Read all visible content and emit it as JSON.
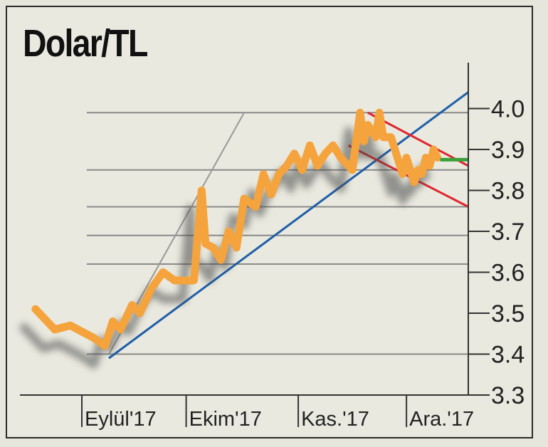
{
  "chart_data": {
    "type": "line",
    "title": "Dolar/TL",
    "xlabel": "",
    "ylabel": "",
    "ylim": [
      3.3,
      4.04
    ],
    "y_ticks": [
      "4.0",
      "3.9",
      "3.8",
      "3.7",
      "3.6",
      "3.5",
      "3.4",
      "3.3"
    ],
    "y_tick_values": [
      4.0,
      3.9,
      3.8,
      3.7,
      3.6,
      3.5,
      3.4,
      3.3
    ],
    "x_ticks": [
      "Eylül'17",
      "Ekim'17",
      "Kas.'17",
      "Ara.'17"
    ],
    "x_tick_positions": [
      0,
      27,
      56,
      84
    ],
    "xlim": [
      -16,
      100
    ],
    "grid_levels": [
      3.99,
      3.85,
      3.76,
      3.69,
      3.62,
      3.4
    ],
    "series": [
      {
        "color": "#f5a33c",
        "x": [
          -12,
          -7,
          -3,
          3,
          6,
          8,
          10,
          13,
          15,
          18,
          21,
          24,
          29,
          31,
          32,
          34,
          36,
          38,
          40,
          42,
          45,
          47,
          49,
          51,
          53,
          55,
          57,
          59,
          61,
          63,
          65,
          67,
          70,
          72,
          73,
          74,
          76,
          77,
          78,
          80,
          82,
          83,
          84,
          86,
          87,
          88,
          89,
          90,
          91,
          92
        ],
        "y": [
          3.51,
          3.46,
          3.47,
          3.44,
          3.42,
          3.48,
          3.46,
          3.52,
          3.5,
          3.56,
          3.6,
          3.58,
          3.58,
          3.8,
          3.67,
          3.66,
          3.63,
          3.7,
          3.66,
          3.78,
          3.76,
          3.84,
          3.79,
          3.84,
          3.86,
          3.89,
          3.85,
          3.91,
          3.86,
          3.89,
          3.91,
          3.88,
          3.85,
          3.99,
          3.92,
          3.96,
          3.93,
          3.99,
          3.93,
          3.93,
          3.87,
          3.84,
          3.88,
          3.82,
          3.85,
          3.84,
          3.88,
          3.86,
          3.9,
          3.88
        ]
      }
    ],
    "trendlines": [
      {
        "color": "#1f5fa8",
        "x": [
          7,
          100
        ],
        "y": [
          3.39,
          4.04
        ]
      },
      {
        "color": "#999999",
        "x": [
          7,
          42
        ],
        "y": [
          3.4,
          3.99
        ]
      },
      {
        "color": "#e02530",
        "x": [
          69,
          100
        ],
        "y": [
          3.91,
          3.76
        ]
      },
      {
        "color": "#e02530",
        "x": [
          74,
          100
        ],
        "y": [
          3.99,
          3.86
        ]
      }
    ],
    "last_value_marker": {
      "color": "#3aa13a",
      "x": 92,
      "y": 3.875
    }
  }
}
